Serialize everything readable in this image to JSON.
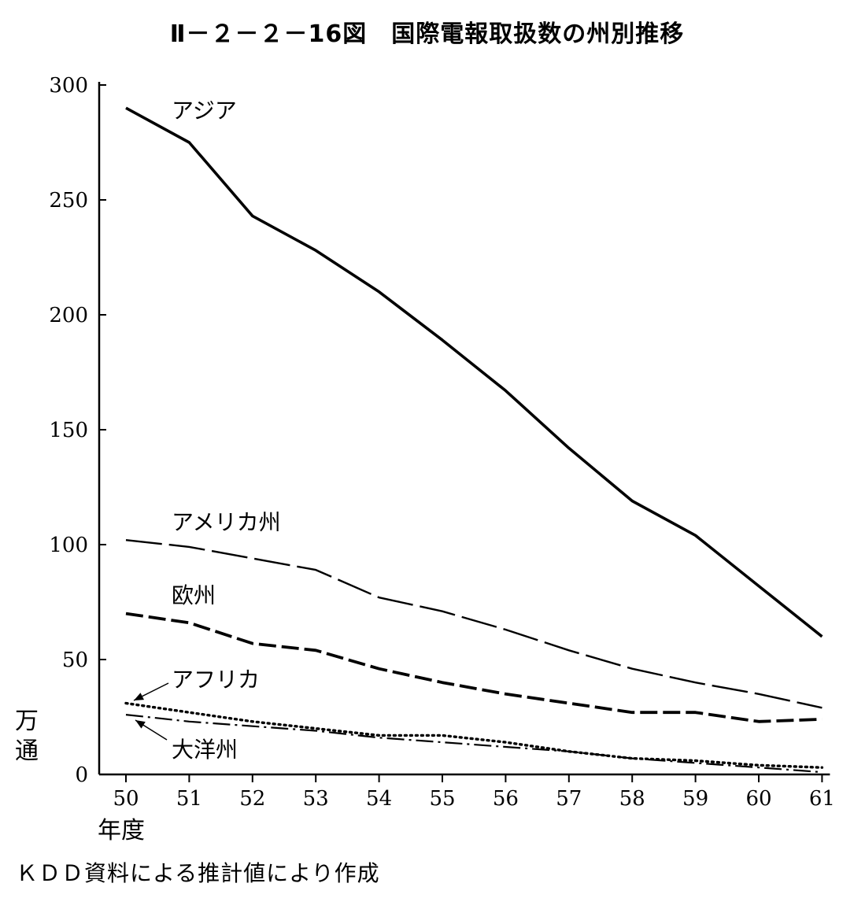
{
  "title": "Ⅱ－２－２－16図　国際電報取扱数の州別推移",
  "source": "ＫＤＤ資料による推計値により作成",
  "chart_data": {
    "type": "line",
    "ylabel": "万通",
    "xlabel": "年度",
    "ylim": [
      0,
      300
    ],
    "yticks": [
      "0",
      "50",
      "100",
      "150",
      "200",
      "250",
      "300"
    ],
    "x": [
      "50",
      "51",
      "52",
      "53",
      "54",
      "55",
      "56",
      "57",
      "58",
      "59",
      "60",
      "61"
    ],
    "grid": false,
    "series": [
      {
        "name": "アジア",
        "style": "solid",
        "values": [
          290,
          275,
          243,
          228,
          210,
          189,
          167,
          142,
          119,
          104,
          82,
          60
        ]
      },
      {
        "name": "アメリカ州",
        "style": "long-dash",
        "values": [
          102,
          99,
          94,
          89,
          77,
          71,
          63,
          54,
          46,
          40,
          35,
          29
        ]
      },
      {
        "name": "欧州",
        "style": "dash",
        "values": [
          70,
          66,
          57,
          54,
          46,
          40,
          35,
          31,
          27,
          27,
          23,
          24
        ]
      },
      {
        "name": "アフリカ",
        "style": "dotted",
        "values": [
          31,
          27,
          23,
          20,
          17,
          17,
          14,
          10,
          7,
          6,
          4,
          3
        ]
      },
      {
        "name": "大洋州",
        "style": "dash-dot",
        "values": [
          26,
          23,
          21,
          19,
          16,
          14,
          12,
          10,
          7,
          5,
          3,
          1
        ]
      }
    ]
  }
}
